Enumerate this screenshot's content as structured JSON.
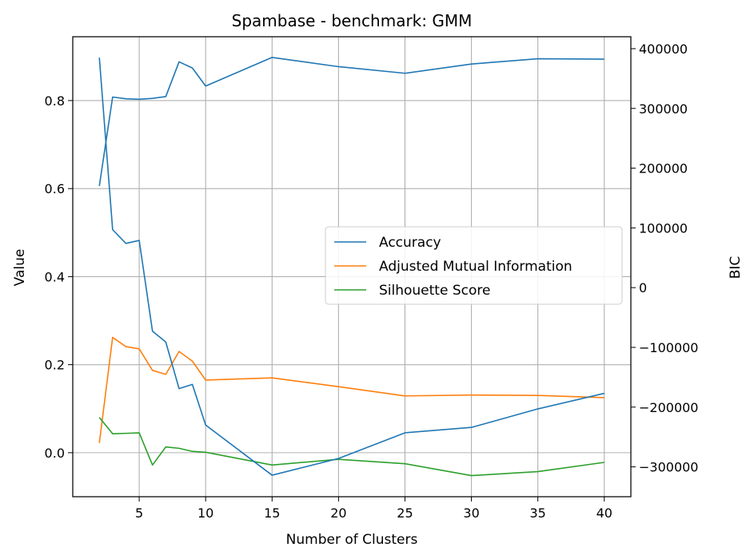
{
  "chart_data": {
    "type": "line",
    "title": "Spambase - benchmark: GMM",
    "xlabel": "Number of Clusters",
    "ylabel": "Value",
    "y2label": "BIC",
    "xlim": [
      0,
      42
    ],
    "ylim": [
      -0.1,
      0.945
    ],
    "y2lim": [
      -350000,
      420000
    ],
    "xticks": [
      5,
      10,
      15,
      20,
      25,
      30,
      35,
      40
    ],
    "yticks": [
      0.0,
      0.2,
      0.4,
      0.6,
      0.8
    ],
    "ytick_labels": [
      "0.0",
      "0.2",
      "0.4",
      "0.6",
      "0.8"
    ],
    "y2ticks": [
      -300000,
      -200000,
      -100000,
      0,
      100000,
      200000,
      300000,
      400000
    ],
    "y2tick_labels": [
      "−300000",
      "−200000",
      "−100000",
      "0",
      "100000",
      "200000",
      "300000",
      "400000"
    ],
    "grid": true,
    "legend_position": "center-right",
    "x": [
      2,
      3,
      4,
      5,
      6,
      7,
      8,
      9,
      10,
      15,
      20,
      25,
      30,
      35,
      40
    ],
    "series": [
      {
        "name": "Accuracy",
        "axis": "left",
        "color": "#1f77b4",
        "values": [
          0.606,
          0.808,
          0.804,
          0.803,
          0.805,
          0.809,
          0.888,
          0.874,
          0.833,
          0.898,
          0.877,
          0.862,
          0.883,
          0.895,
          0.894
        ]
      },
      {
        "name": "Adjusted Mutual Information",
        "axis": "left",
        "color": "#ff7f0e",
        "values": [
          0.022,
          0.262,
          0.241,
          0.236,
          0.187,
          0.178,
          0.23,
          0.208,
          0.165,
          0.17,
          0.15,
          0.129,
          0.131,
          0.13,
          0.125
        ]
      },
      {
        "name": "Silhouette Score",
        "axis": "left",
        "color": "#2ca02c",
        "values": [
          0.08,
          0.043,
          0.044,
          0.045,
          -0.028,
          0.013,
          0.01,
          0.003,
          0.001,
          -0.028,
          -0.015,
          -0.025,
          -0.052,
          -0.043,
          -0.022
        ]
      },
      {
        "name": "BIC",
        "axis": "right",
        "color": "#1f77b4",
        "in_legend": false,
        "values": [
          385000,
          97000,
          74000,
          79000,
          -73000,
          -91000,
          -169000,
          -162000,
          -230000,
          -314000,
          -286000,
          -243000,
          -234000,
          -203000,
          -177000
        ]
      }
    ]
  }
}
